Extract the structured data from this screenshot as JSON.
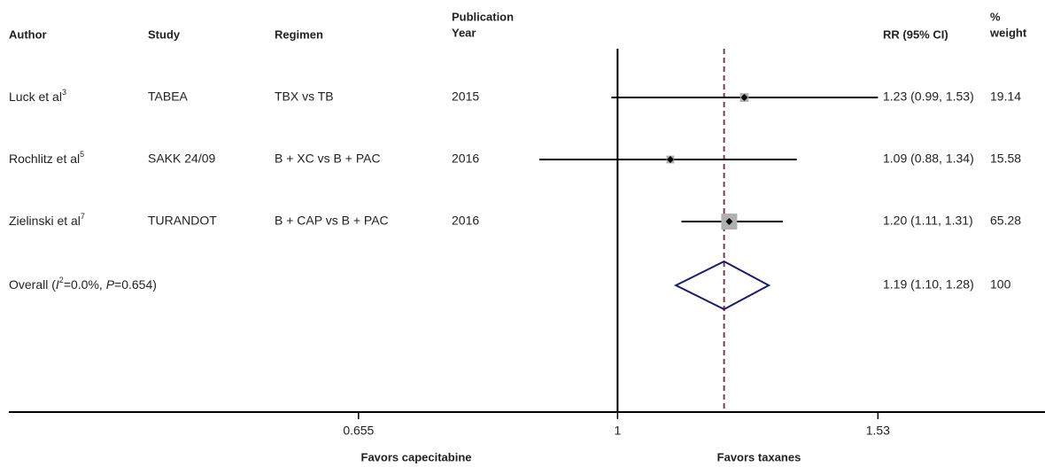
{
  "chart_data": {
    "type": "forest",
    "headers": {
      "author": "Author",
      "study": "Study",
      "regimen": "Regimen",
      "year": [
        "Publication",
        "Year"
      ],
      "rr": "RR (95% CI)",
      "weight": [
        "%",
        "weight"
      ]
    },
    "studies": [
      {
        "author": "Luck et al",
        "ref": "3",
        "study": "TABEA",
        "regimen": "TBX vs TB",
        "year": 2015,
        "rr": 1.23,
        "lower": 0.99,
        "upper": 1.53,
        "rr_label": "1.23 (0.99, 1.53)",
        "weight": 19.14
      },
      {
        "author": "Rochlitz et al",
        "ref": "5",
        "study": "SAKK 24/09",
        "regimen": "B + XC vs B + PAC",
        "year": 2016,
        "rr": 1.09,
        "lower": 0.88,
        "upper": 1.34,
        "rr_label": "1.09 (0.88, 1.34)",
        "weight": 15.58
      },
      {
        "author": "Zielinski et al",
        "ref": "7",
        "study": "TURANDOT",
        "regimen": "B + CAP vs B + PAC",
        "year": 2016,
        "rr": 1.2,
        "lower": 1.11,
        "upper": 1.31,
        "rr_label": "1.20 (1.11, 1.31)",
        "weight": 65.28
      }
    ],
    "overall": {
      "label_parts": [
        "Overall (",
        "I",
        "2",
        "=0.0%, ",
        "P",
        "=0.654)"
      ],
      "rr": 1.19,
      "lower": 1.1,
      "upper": 1.28,
      "rr_label": "1.19 (1.10, 1.28)",
      "weight": 100
    },
    "xlim": [
      0.37,
      2.01
    ],
    "xticks": [
      0.655,
      1,
      1.53
    ],
    "log_scale": true,
    "reference": 1,
    "x_labels": [
      "Favors capecitabine",
      "Favors taxanes"
    ],
    "colors": {
      "ci": "#000000",
      "box": "#b0b0b0",
      "diamond": "#1a1a6e",
      "dashed": "#7a3b4a"
    }
  }
}
